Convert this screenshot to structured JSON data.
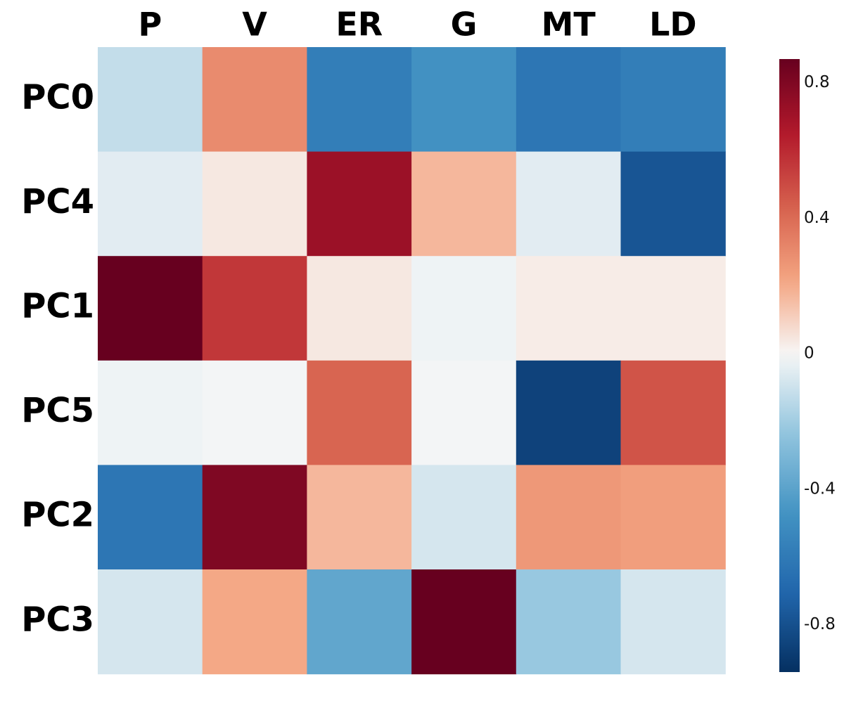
{
  "chart_data": {
    "type": "heatmap",
    "title": "",
    "xlabel": "",
    "ylabel": "",
    "columns": [
      "P",
      "V",
      "ER",
      "G",
      "MT",
      "LD"
    ],
    "rows": [
      "PC0",
      "PC4",
      "PC1",
      "PC5",
      "PC2",
      "PC3"
    ],
    "values": [
      [
        -0.12,
        0.3,
        -0.58,
        -0.48,
        -0.62,
        -0.58
      ],
      [
        -0.05,
        0.04,
        0.72,
        0.17,
        -0.05,
        -0.78
      ],
      [
        0.88,
        0.56,
        0.04,
        -0.02,
        0.03,
        0.03
      ],
      [
        -0.02,
        -0.01,
        0.42,
        -0.01,
        -0.86,
        0.47
      ],
      [
        -0.62,
        0.8,
        0.17,
        -0.08,
        0.26,
        0.24
      ],
      [
        -0.08,
        0.21,
        -0.38,
        0.93,
        -0.22,
        -0.08
      ]
    ],
    "colorbar": {
      "colormap": "RdBu_r",
      "vmin": -0.94,
      "vmax": 0.87,
      "ticks": [
        0.8,
        0.4,
        0,
        -0.4,
        -0.8
      ],
      "tick_labels": [
        "0.8",
        "0.4",
        "0",
        "-0.4",
        "-0.8"
      ]
    },
    "grid": false,
    "legend": "colorbar-right"
  }
}
